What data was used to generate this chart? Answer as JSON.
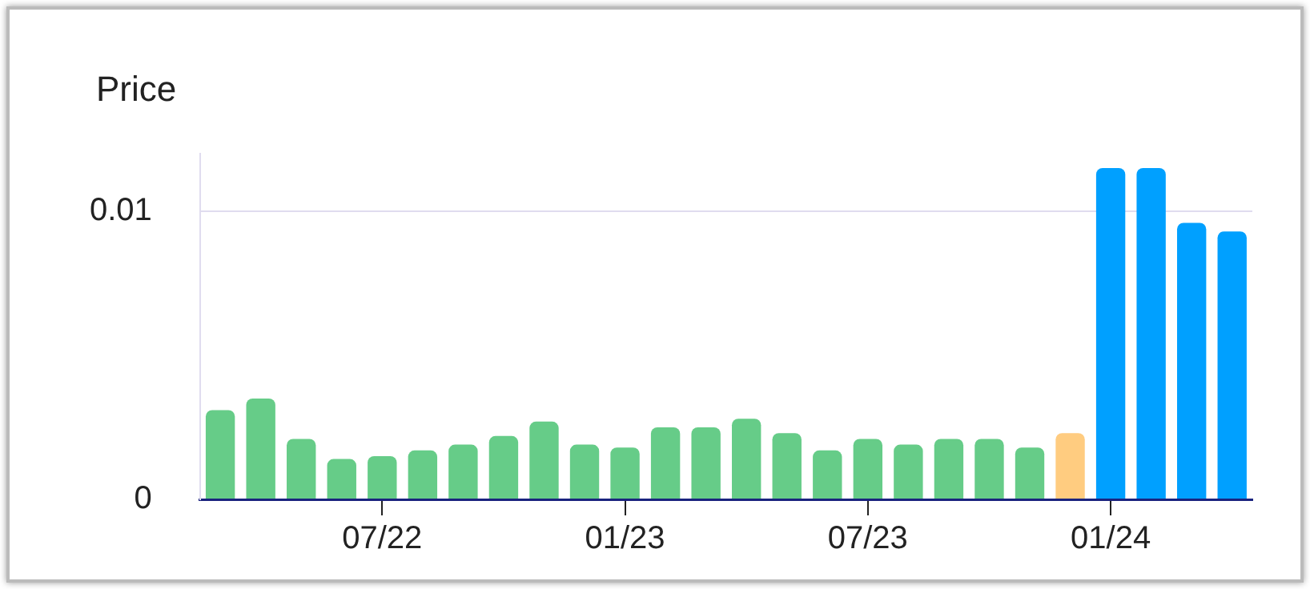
{
  "chart_data": {
    "type": "bar",
    "ylabel": "Price",
    "categories": [
      null,
      null,
      null,
      null,
      "07/22",
      null,
      null,
      null,
      null,
      null,
      "01/23",
      null,
      null,
      null,
      null,
      null,
      "07/23",
      null,
      null,
      null,
      null,
      null,
      "01/24",
      null,
      null,
      null
    ],
    "values": [
      0.0031,
      0.0035,
      0.0021,
      0.0014,
      0.0015,
      0.0017,
      0.0019,
      0.0022,
      0.0027,
      0.0019,
      0.0018,
      0.0025,
      0.0025,
      0.0028,
      0.0023,
      0.0017,
      0.0021,
      0.0019,
      0.0021,
      0.0021,
      0.0018,
      0.0023,
      0.0115,
      0.0115,
      0.0096,
      0.0093
    ],
    "colors": [
      "#66cc88",
      "#66cc88",
      "#66cc88",
      "#66cc88",
      "#66cc88",
      "#66cc88",
      "#66cc88",
      "#66cc88",
      "#66cc88",
      "#66cc88",
      "#66cc88",
      "#66cc88",
      "#66cc88",
      "#66cc88",
      "#66cc88",
      "#66cc88",
      "#66cc88",
      "#66cc88",
      "#66cc88",
      "#66cc88",
      "#66cc88",
      "#ffcc80",
      "#00a0ff",
      "#00a0ff",
      "#00a0ff",
      "#00a0ff"
    ],
    "ylim": [
      0,
      0.012
    ],
    "yticks": [
      0,
      0.01
    ],
    "grid": "y",
    "legend": false
  }
}
